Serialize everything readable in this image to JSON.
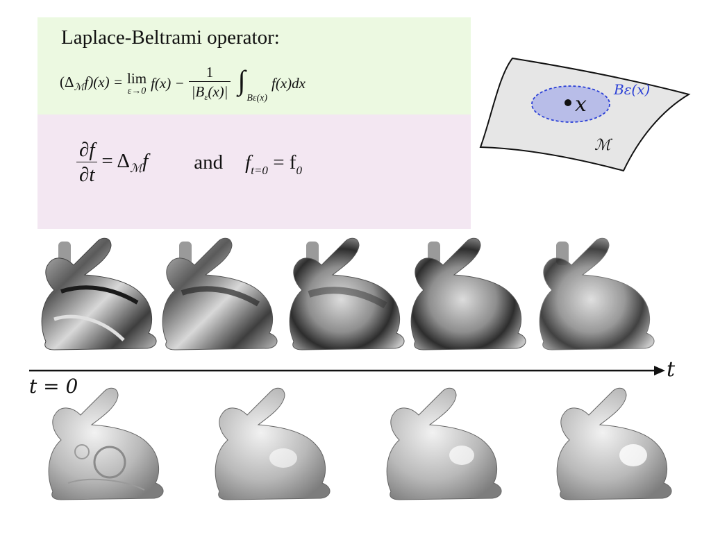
{
  "header": {
    "title": "Laplace-Beltrami operator:",
    "formula_lhs": "(Δ",
    "formula_lhs_sub": "ℳ",
    "formula_lhs_end": "f)(x) =",
    "lim": "lim",
    "lim_sub": "ε→0",
    "fx": "f(x) −",
    "frac_num": "1",
    "frac_den": "|B",
    "frac_den_sub": "ε",
    "frac_den_end": "(x)|",
    "integral": "∫",
    "integral_sub": "Bε(x)",
    "integrand": "f(x)dx"
  },
  "heat_equation": {
    "num": "∂f",
    "den": "∂t",
    "rhs": "= Δ",
    "rhs_sub": "ℳ",
    "rhs_end": "f",
    "and": "and",
    "init_f": "f",
    "init_sub": "t=0",
    "init_rhs": "= f",
    "init_rhs_sub": "0"
  },
  "manifold": {
    "ball_label": "Bε(x)",
    "point_label": "x",
    "manifold_label": "ℳ"
  },
  "timeline": {
    "axis_label": "t",
    "start_label": "t = 0"
  },
  "colors": {
    "green_box": "#ecf9e1",
    "pink_box": "#f3e7f2",
    "ball_fill": "#b8bde8",
    "ball_stroke": "#2a3fd6",
    "ball_label": "#2a3fd6",
    "manifold_fill": "#e6e6e6"
  }
}
